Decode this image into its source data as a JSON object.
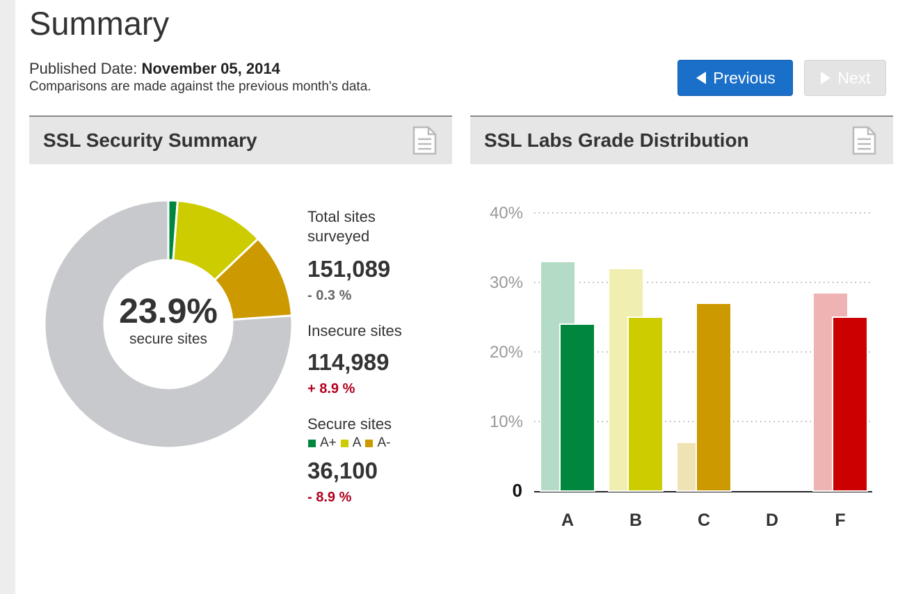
{
  "header": {
    "title": "Summary",
    "published_label": "Published Date:",
    "published_date": "November 05, 2014",
    "comparison_note": "Comparisons are made against the previous month's data.",
    "prev_label": "Previous",
    "next_label": "Next"
  },
  "security_panel": {
    "title": "SSL Security Summary",
    "icon": "document-icon",
    "center_value": "23.9%",
    "center_label": "secure sites",
    "total_label": "Total sites surveyed",
    "total_value": "151,089",
    "total_change": "- 0.3 %",
    "insecure_label": "Insecure sites",
    "insecure_value": "114,989",
    "insecure_change": "+ 8.9 %",
    "secure_label": "Secure sites",
    "secure_value": "36,100",
    "secure_change": "- 8.9 %",
    "legend": [
      {
        "label": "A+",
        "color": "#00873d"
      },
      {
        "label": "A",
        "color": "#cccc00"
      },
      {
        "label": "A-",
        "color": "#cc9900"
      }
    ]
  },
  "grade_panel": {
    "title": "SSL Labs Grade Distribution",
    "icon": "document-icon"
  },
  "colors": {
    "accent": "#1a6fc9",
    "negative": "#b0001e",
    "neutral_change": "#666666",
    "insecure_slice": "#c8c9cc"
  },
  "chart_data": [
    {
      "type": "pie",
      "title": "",
      "slices": [
        {
          "label": "A+",
          "value": 1.2,
          "color": "#00873d"
        },
        {
          "label": "A",
          "value": 11.7,
          "color": "#cccc00"
        },
        {
          "label": "A-",
          "value": 11.0,
          "color": "#cc9900"
        },
        {
          "label": "",
          "value": 76.1,
          "color": "#c8c9cc"
        }
      ]
    },
    {
      "type": "bar",
      "title": "",
      "categories": [
        "A",
        "B",
        "C",
        "D",
        "F"
      ],
      "series": [
        {
          "values": [
            33,
            32,
            7,
            0,
            28.5
          ],
          "colors": [
            "#b3dbc5",
            "#f0efb0",
            "#efe2b3",
            "#ffffff",
            "#efb3b3"
          ]
        },
        {
          "values": [
            24,
            25,
            27,
            0,
            25
          ],
          "colors": [
            "#00873d",
            "#cccc00",
            "#cc9900",
            "#ffffff",
            "#cc0000"
          ]
        }
      ],
      "ylim": [
        0,
        40
      ],
      "yticks": [
        0,
        10,
        20,
        30,
        40
      ],
      "ytick_labels": [
        "0",
        "10%",
        "20%",
        "30%",
        "40%"
      ],
      "grid": true
    }
  ]
}
